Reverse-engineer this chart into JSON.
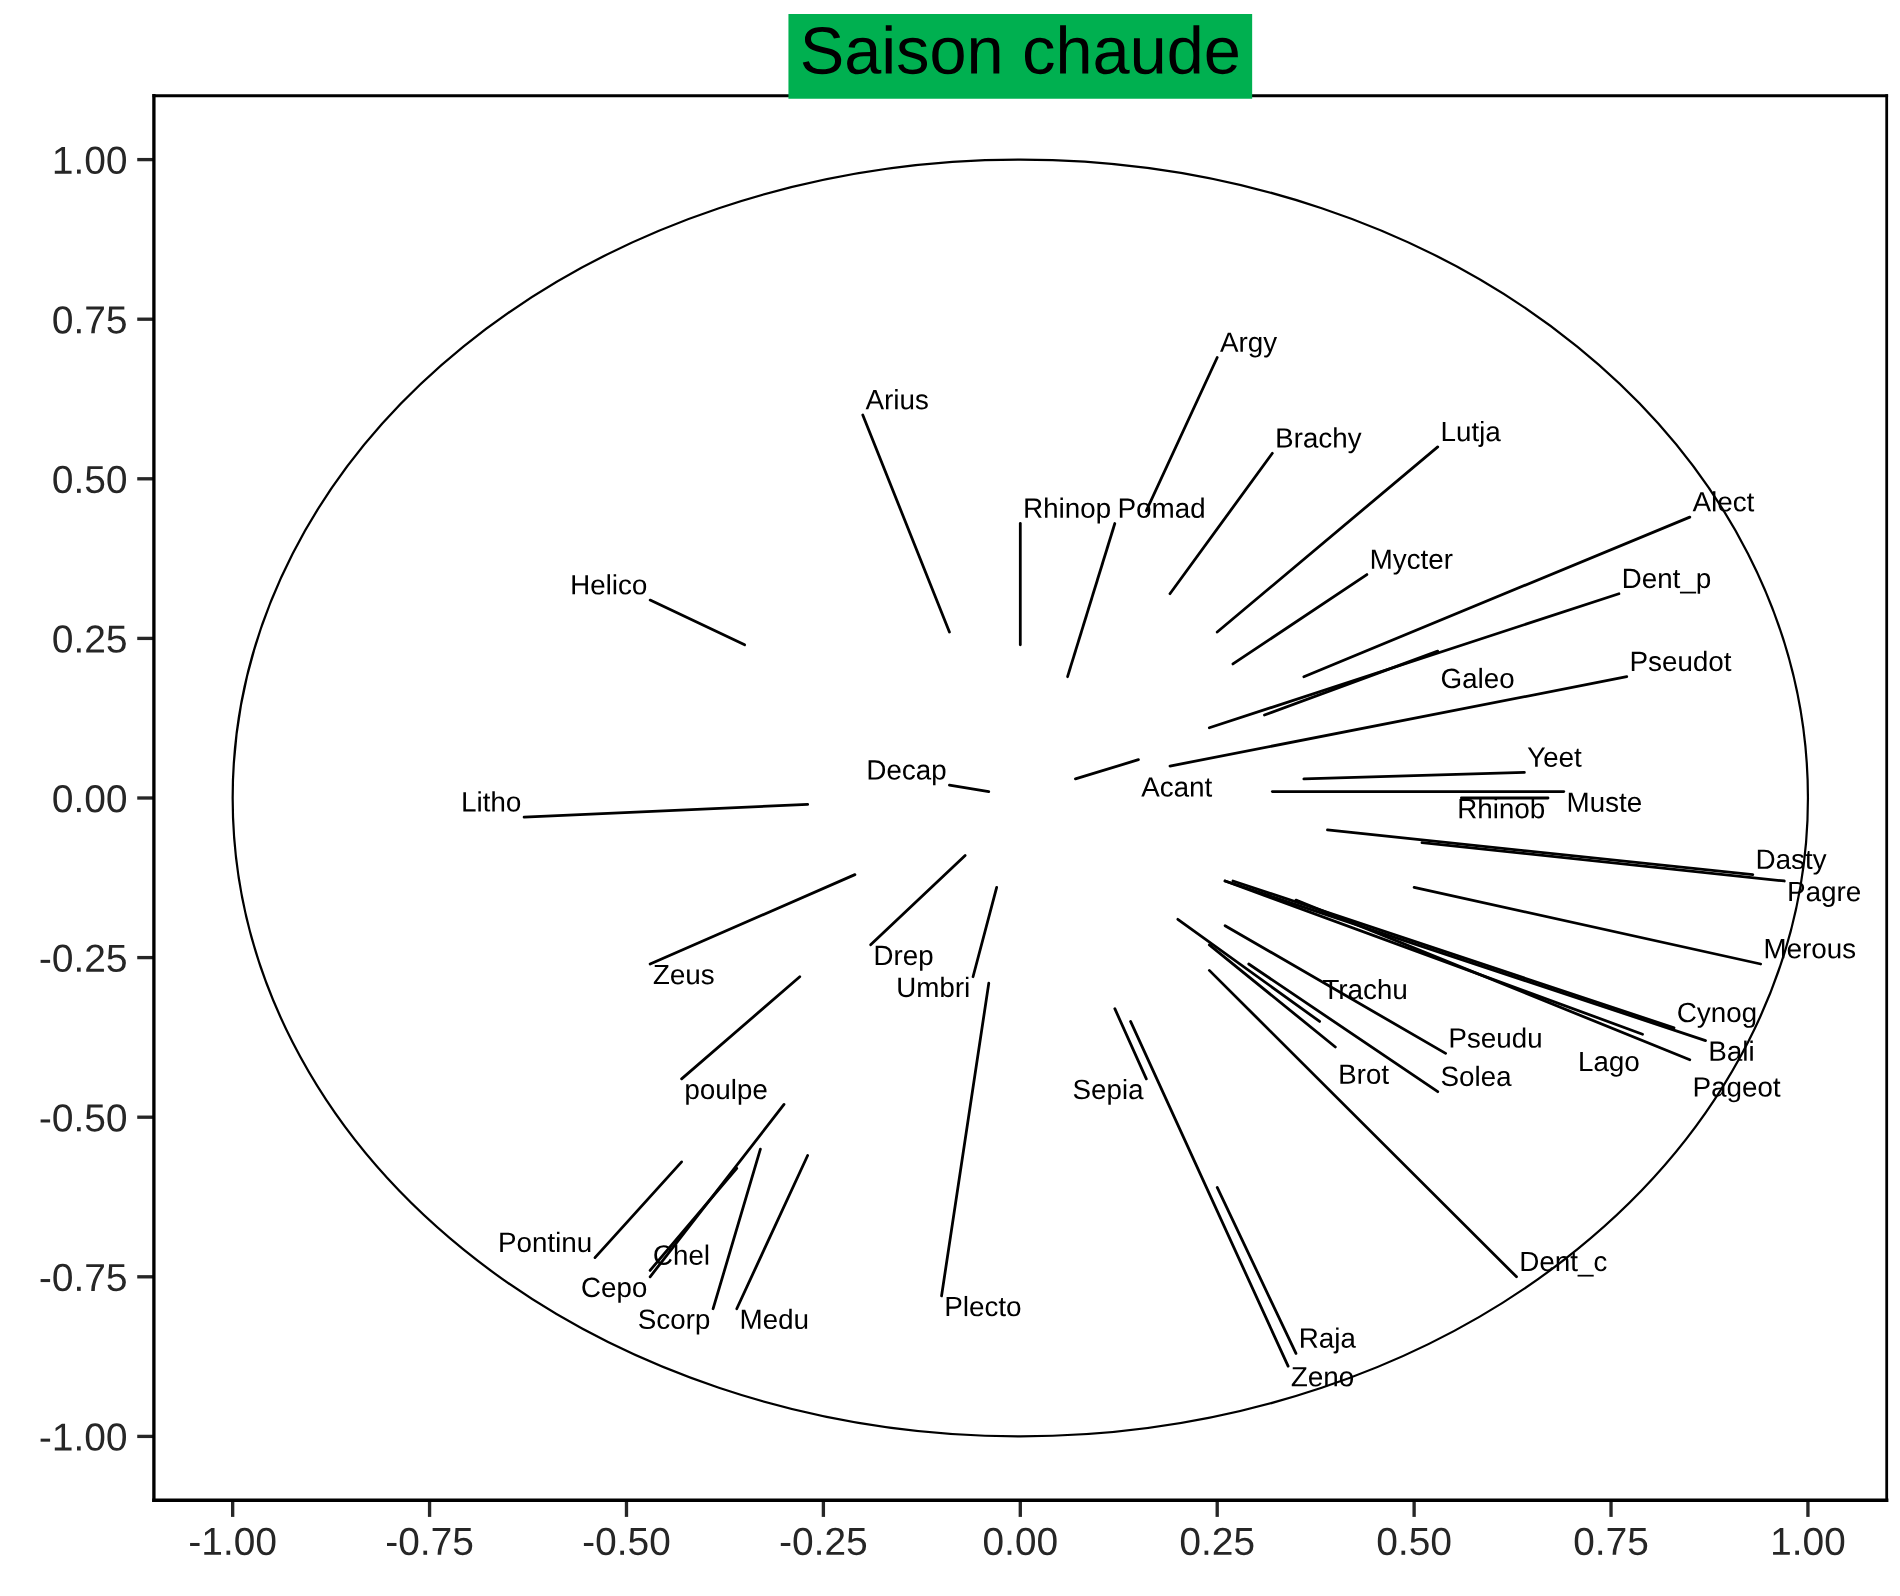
{
  "chart_data": {
    "type": "line",
    "title": "Saison chaude",
    "xlim": [
      -1.1,
      1.1
    ],
    "ylim": [
      -1.1,
      1.1
    ],
    "xticks": [
      {
        "value": -1,
        "label": "-1.00"
      },
      {
        "value": -0.75,
        "label": "-0.75"
      },
      {
        "value": -0.5,
        "label": "-0.50"
      },
      {
        "value": -0.25,
        "label": "-0.25"
      },
      {
        "value": 0,
        "label": "0.00"
      },
      {
        "value": 0.25,
        "label": "0.25"
      },
      {
        "value": 0.5,
        "label": "0.50"
      },
      {
        "value": 0.75,
        "label": "0.75"
      },
      {
        "value": 1,
        "label": "1.00"
      }
    ],
    "yticks": [
      {
        "value": -1,
        "label": "-1.00"
      },
      {
        "value": -0.75,
        "label": "-0.75"
      },
      {
        "value": -0.5,
        "label": "-0.50"
      },
      {
        "value": -0.25,
        "label": "-0.25"
      },
      {
        "value": 0,
        "label": "0.00"
      },
      {
        "value": 0.25,
        "label": "0.25"
      },
      {
        "value": 0.5,
        "label": "0.50"
      },
      {
        "value": 0.75,
        "label": "0.75"
      },
      {
        "value": 1,
        "label": "1.00"
      }
    ],
    "grid": false,
    "legend": false,
    "marker": "none",
    "line_style": "solid",
    "series": [
      {
        "name": "Arius",
        "color": "#000000",
        "x": [
          -0.09,
          -0.2
        ],
        "values": [
          0.26,
          0.6
        ]
      },
      {
        "name": "Helico",
        "color": "#000000",
        "x": [
          -0.35,
          -0.47
        ],
        "values": [
          0.24,
          0.31
        ]
      },
      {
        "name": "Rhinop",
        "color": "#000000",
        "x": [
          0.0,
          0.0
        ],
        "values": [
          0.24,
          0.43
        ]
      },
      {
        "name": "Pomad",
        "color": "#000000",
        "x": [
          0.06,
          0.12
        ],
        "values": [
          0.19,
          0.43
        ]
      },
      {
        "name": "Argy",
        "color": "#000000",
        "x": [
          0.16,
          0.25
        ],
        "values": [
          0.45,
          0.69
        ]
      },
      {
        "name": "Brachy",
        "color": "#000000",
        "x": [
          0.19,
          0.32
        ],
        "values": [
          0.32,
          0.54
        ]
      },
      {
        "name": "Lutja",
        "color": "#000000",
        "x": [
          0.25,
          0.53
        ],
        "values": [
          0.26,
          0.55
        ]
      },
      {
        "name": "Mycter",
        "color": "#000000",
        "x": [
          0.27,
          0.44
        ],
        "values": [
          0.21,
          0.35
        ]
      },
      {
        "name": "Alect",
        "color": "#000000",
        "x": [
          0.36,
          0.85
        ],
        "values": [
          0.19,
          0.44
        ]
      },
      {
        "name": "Dent_p",
        "color": "#000000",
        "x": [
          0.24,
          0.76
        ],
        "values": [
          0.11,
          0.32
        ]
      },
      {
        "name": "Galeo",
        "color": "#000000",
        "x": [
          0.31,
          0.53
        ],
        "values": [
          0.13,
          0.23
        ]
      },
      {
        "name": "Acant",
        "color": "#000000",
        "x": [
          0.07,
          0.15
        ],
        "values": [
          0.03,
          0.06
        ]
      },
      {
        "name": "Pseudot",
        "color": "#000000",
        "x": [
          0.19,
          0.77
        ],
        "values": [
          0.05,
          0.19
        ]
      },
      {
        "name": "Yeet",
        "color": "#000000",
        "x": [
          0.36,
          0.64
        ],
        "values": [
          0.03,
          0.04
        ]
      },
      {
        "name": "Muste",
        "color": "#000000",
        "x": [
          0.32,
          0.69
        ],
        "values": [
          0.01,
          0.01
        ]
      },
      {
        "name": "Rhinob",
        "color": "#000000",
        "x": [
          0.56,
          0.67
        ],
        "values": [
          0.0,
          0.0
        ]
      },
      {
        "name": "Dasty",
        "color": "#000000",
        "x": [
          0.39,
          0.93
        ],
        "values": [
          -0.05,
          -0.12
        ]
      },
      {
        "name": "Pagre",
        "color": "#000000",
        "x": [
          0.51,
          0.97
        ],
        "values": [
          -0.07,
          -0.13
        ]
      },
      {
        "name": "Merous",
        "color": "#000000",
        "x": [
          0.5,
          0.94
        ],
        "values": [
          -0.14,
          -0.26
        ]
      },
      {
        "name": "Lago",
        "color": "#000000",
        "x": [
          0.26,
          0.79
        ],
        "values": [
          -0.13,
          -0.37
        ]
      },
      {
        "name": "Cynog",
        "color": "#000000",
        "x": [
          0.27,
          0.83
        ],
        "values": [
          -0.13,
          -0.36
        ]
      },
      {
        "name": "Bali",
        "color": "#000000",
        "x": [
          0.26,
          0.87
        ],
        "values": [
          -0.13,
          -0.38
        ]
      },
      {
        "name": "Pageot",
        "color": "#000000",
        "x": [
          0.35,
          0.85
        ],
        "values": [
          -0.16,
          -0.41
        ]
      },
      {
        "name": "Trachu",
        "color": "#000000",
        "x": [
          0.2,
          0.38
        ],
        "values": [
          -0.19,
          -0.35
        ]
      },
      {
        "name": "Brot",
        "color": "#000000",
        "x": [
          0.24,
          0.4
        ],
        "values": [
          -0.23,
          -0.39
        ]
      },
      {
        "name": "Pseudu",
        "color": "#000000",
        "x": [
          0.26,
          0.54
        ],
        "values": [
          -0.2,
          -0.4
        ]
      },
      {
        "name": "Solea",
        "color": "#000000",
        "x": [
          0.29,
          0.53
        ],
        "values": [
          -0.26,
          -0.46
        ]
      },
      {
        "name": "Dent_c",
        "color": "#000000",
        "x": [
          0.24,
          0.63
        ],
        "values": [
          -0.27,
          -0.75
        ]
      },
      {
        "name": "Sepia",
        "color": "#000000",
        "x": [
          0.12,
          0.16
        ],
        "values": [
          -0.33,
          -0.44
        ]
      },
      {
        "name": "Zeno",
        "color": "#000000",
        "x": [
          0.14,
          0.34
        ],
        "values": [
          -0.35,
          -0.89
        ]
      },
      {
        "name": "Raja",
        "color": "#000000",
        "x": [
          0.25,
          0.35
        ],
        "values": [
          -0.61,
          -0.87
        ]
      },
      {
        "name": "Decap",
        "color": "#000000",
        "x": [
          -0.04,
          -0.09
        ],
        "values": [
          0.01,
          0.02
        ]
      },
      {
        "name": "Litho",
        "color": "#000000",
        "x": [
          -0.27,
          -0.63
        ],
        "values": [
          -0.01,
          -0.03
        ]
      },
      {
        "name": "Zeus",
        "color": "#000000",
        "x": [
          -0.21,
          -0.47
        ],
        "values": [
          -0.12,
          -0.26
        ]
      },
      {
        "name": "Drep",
        "color": "#000000",
        "x": [
          -0.07,
          -0.19
        ],
        "values": [
          -0.09,
          -0.23
        ]
      },
      {
        "name": "Umbri",
        "color": "#000000",
        "x": [
          -0.03,
          -0.06
        ],
        "values": [
          -0.14,
          -0.28
        ]
      },
      {
        "name": "Plecto",
        "color": "#000000",
        "x": [
          -0.04,
          -0.1
        ],
        "values": [
          -0.29,
          -0.78
        ]
      },
      {
        "name": "poulpe",
        "color": "#000000",
        "x": [
          -0.28,
          -0.43
        ],
        "values": [
          -0.28,
          -0.44
        ]
      },
      {
        "name": "Pontinu",
        "color": "#000000",
        "x": [
          -0.43,
          -0.54
        ],
        "values": [
          -0.57,
          -0.72
        ]
      },
      {
        "name": "Cepo",
        "color": "#000000",
        "x": [
          -0.3,
          -0.47
        ],
        "values": [
          -0.48,
          -0.75
        ]
      },
      {
        "name": "Chel",
        "color": "#000000",
        "x": [
          -0.36,
          -0.47
        ],
        "values": [
          -0.58,
          -0.74
        ]
      },
      {
        "name": "Scorp",
        "color": "#000000",
        "x": [
          -0.33,
          -0.39
        ],
        "values": [
          -0.55,
          -0.8
        ]
      },
      {
        "name": "Medu",
        "color": "#000000",
        "x": [
          -0.27,
          -0.36
        ],
        "values": [
          -0.56,
          -0.8
        ]
      }
    ]
  }
}
